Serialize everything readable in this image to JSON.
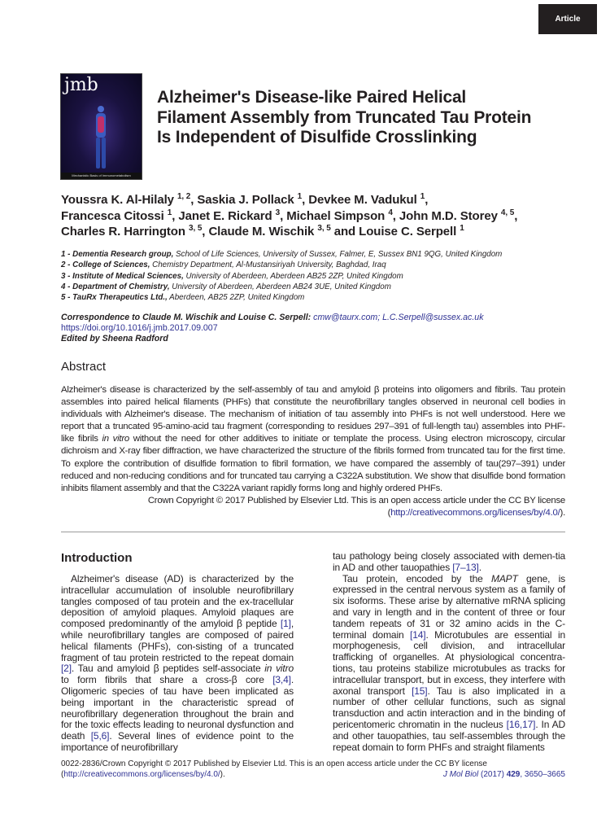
{
  "badge": "Article",
  "cover": {
    "logo": "jmb",
    "tagline": "Mechanistic Basis of Immunometabolism"
  },
  "title": "Alzheimer's Disease-like Paired Helical Filament Assembly from Truncated Tau Protein Is Independent of Disulfide Crosslinking",
  "authors": [
    {
      "name": "Youssra K. Al-Hilaly",
      "sup": "1, 2",
      "sep": ", "
    },
    {
      "name": "Saskia J. Pollack",
      "sup": "1",
      "sep": ", "
    },
    {
      "name": "Devkee M. Vadukul",
      "sup": "1",
      "sep": ", "
    },
    {
      "name": "Francesca Citossi",
      "sup": "1",
      "sep": ", "
    },
    {
      "name": "Janet E. Rickard",
      "sup": "3",
      "sep": ", "
    },
    {
      "name": "Michael Simpson",
      "sup": "4",
      "sep": ", "
    },
    {
      "name": "John M.D. Storey",
      "sup": "4, 5",
      "sep": ", "
    },
    {
      "name": "Charles R. Harrington",
      "sup": "3, 5",
      "sep": ", "
    },
    {
      "name": "Claude M. Wischik",
      "sup": "3, 5",
      "sep": " and "
    },
    {
      "name": "Louise C. Serpell",
      "sup": "1",
      "sep": ""
    }
  ],
  "affiliations": [
    {
      "label": "1 - Dementia Research group,",
      "text": " School of Life Sciences, University of Sussex, Falmer, E, Sussex BN1 9QG, United Kingdom"
    },
    {
      "label": "2 - College of Sciences,",
      "text": " Chemistry Department, Al-Mustansiriyah University, Baghdad, Iraq"
    },
    {
      "label": "3 - Institute of Medical Sciences,",
      "text": " University of Aberdeen, Aberdeen AB25 2ZP, United Kingdom"
    },
    {
      "label": "4 - Department of Chemistry,",
      "text": " University of Aberdeen, Aberdeen AB24 3UE, United Kingdom"
    },
    {
      "label": "5 - TauRx Therapeutics Ltd.,",
      "text": " Aberdeen, AB25 2ZP, United Kingdom"
    }
  ],
  "correspondence": {
    "label": "Correspondence to Claude M. Wischik and Louise C. Serpell:",
    "email1": "cmw@taurx.com",
    "sep": ";",
    "email2": "L.C.Serpell@sussex.ac.uk",
    "doi": "https://doi.org/10.1016/j.jmb.2017.09.007",
    "edited_by": "Edited by Sheena Radford"
  },
  "abstract": {
    "heading": "Abstract",
    "segments": [
      {
        "t": "Alzheimer's disease is characterized by the self-assembly of tau and amyloid β proteins into oligomers and fibrils. Tau protein assembles into paired helical filaments (PHFs) that constitute the neurofibrillary tangles observed in neuronal cell bodies in individuals with Alzheimer's disease. The mechanism of initiation of tau assembly into PHFs is not well understood. Here we report that a truncated 95-amino-acid tau fragment (corresponding to residues 297–391 of full-length tau) assembles into PHF-like fibrils "
      },
      {
        "t": "in vitro",
        "s": "i"
      },
      {
        "t": " without the need for other additives to initiate or template the process. Using electron microscopy, circular dichroism and X-ray fiber diffraction, we have characterized the structure of the fibrils formed from truncated tau for the first time. To explore the contribution of disulfide formation to fibril formation, we have compared the assembly of tau(297–391) under reduced and non-reducing conditions and for truncated tau carrying a C322A substitution. We show that disulfide bond formation inhibits filament assembly and that the C322A variant rapidly forms long and highly ordered PHFs."
      }
    ],
    "copyright": "Crown Copyright © 2017 Published by Elsevier Ltd. This is an open access article under the CC BY license",
    "license_open": "(",
    "license_url": "http://creativecommons.org/licenses/by/4.0/",
    "license_close": ")."
  },
  "introduction": {
    "heading": "Introduction",
    "left_paragraphs": [
      [
        {
          "t": "Alzheimer's disease (AD) is characterized by the intracellular accumulation of insoluble neurofibrillary tangles composed of tau protein and the ex-tracellular deposition of amyloid plaques. Amyloid plaques are composed predominantly of the amyloid β peptide "
        },
        {
          "t": "[1]",
          "s": "link"
        },
        {
          "t": ", while neurofibrillary tangles are composed of paired helical filaments (PHFs), con-sisting of a truncated fragment of tau protein restricted to the repeat domain "
        },
        {
          "t": "[2]",
          "s": "link"
        },
        {
          "t": ". Tau and amyloid β peptides self-associate "
        },
        {
          "t": "in vitro",
          "s": "i"
        },
        {
          "t": " to form fibrils that share a cross-β core "
        },
        {
          "t": "[3,4]",
          "s": "link"
        },
        {
          "t": ". Oligomeric species of tau have been implicated as being important in the characteristic spread of neurofibrillary degeneration throughout the brain and for the toxic effects leading to neuronal dysfunction and death "
        },
        {
          "t": "[5,6]",
          "s": "link"
        },
        {
          "t": ". Several lines of evidence point to the importance of neurofibrillary"
        }
      ]
    ],
    "right_paragraphs": [
      [
        {
          "t": "tau pathology being closely associated with demen-tia in AD and other tauopathies "
        },
        {
          "t": "[7–13]",
          "s": "link"
        },
        {
          "t": "."
        }
      ],
      [
        {
          "t": "Tau protein, encoded by the "
        },
        {
          "t": "MAPT",
          "s": "i"
        },
        {
          "t": " gene, is expressed in the central nervous system as a family of six isoforms. These arise by alternative mRNA splicing and vary in length and in the content of three or four tandem repeats of 31 or 32 amino acids in the C-terminal domain "
        },
        {
          "t": "[14]",
          "s": "link"
        },
        {
          "t": ". Microtubules are essential in morphogenesis, cell division, and intracellular trafficking of organelles. At physiological concentra-tions, tau proteins stabilize microtubules as tracks for intracellular transport, but in excess, they interfere with axonal transport "
        },
        {
          "t": "[15]",
          "s": "link"
        },
        {
          "t": ". Tau is also implicated in a number of other cellular functions, such as signal transduction and actin interaction and in the binding of pericentomeric chromatin in the nucleus "
        },
        {
          "t": "[16,17]",
          "s": "link"
        },
        {
          "t": ". In AD and other tauopathies, tau self-assembles through the repeat domain to form PHFs and straight filaments"
        }
      ]
    ]
  },
  "footer": {
    "issn_line": "0022-2836/Crown Copyright © 2017 Published by Elsevier Ltd. This is an open access article under the CC BY license",
    "license_open": "(",
    "license_url": "http://creativecommons.org/licenses/by/4.0/",
    "license_close": ").",
    "journal": "J Mol Biol",
    "year": " (2017) ",
    "volume": "429",
    "pages": ", 3650–3665"
  },
  "colors": {
    "link": "#2e3192",
    "text": "#231f20",
    "badge": "#231f20"
  }
}
